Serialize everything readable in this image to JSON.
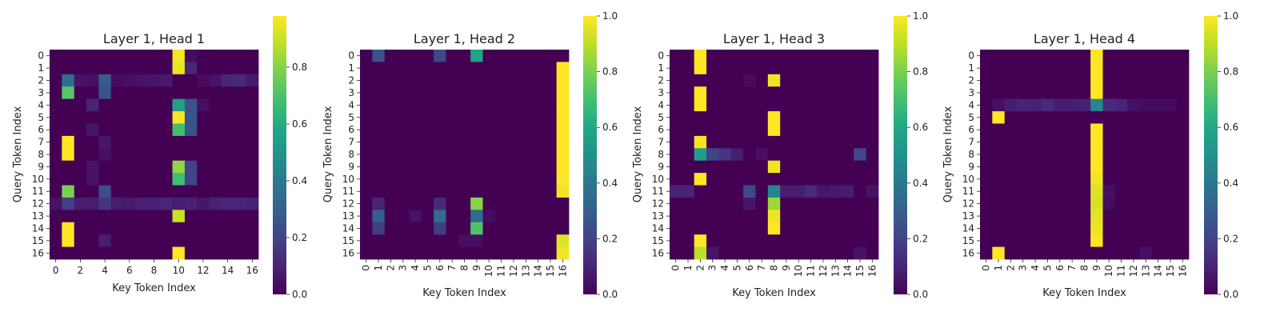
{
  "chart_data": [
    {
      "type": "heatmap",
      "title": "Layer 1, Head 1",
      "xlabel": "Key Token Index",
      "ylabel": "Query Token Index",
      "x_tick_labels": [
        "0",
        "2",
        "4",
        "6",
        "8",
        "10",
        "12",
        "14",
        "16"
      ],
      "y_tick_labels": [
        "0",
        "1",
        "2",
        "3",
        "4",
        "5",
        "6",
        "7",
        "8",
        "9",
        "10",
        "11",
        "12",
        "13",
        "14",
        "15",
        "16"
      ],
      "colorbar": {
        "ticks": [
          "0.0",
          "0.2",
          "0.4",
          "0.6",
          "0.8"
        ],
        "range": [
          0.0,
          0.98
        ]
      },
      "background_value": 0.0,
      "cells": [
        [
          0,
          10,
          0.97
        ],
        [
          0,
          11,
          0.03
        ],
        [
          1,
          10,
          0.95
        ],
        [
          1,
          11,
          0.1
        ],
        [
          2,
          1,
          0.35
        ],
        [
          2,
          2,
          0.05
        ],
        [
          2,
          3,
          0.04
        ],
        [
          2,
          4,
          0.28
        ],
        [
          2,
          5,
          0.03
        ],
        [
          2,
          6,
          0.04
        ],
        [
          2,
          7,
          0.05
        ],
        [
          2,
          8,
          0.06
        ],
        [
          2,
          9,
          0.07
        ],
        [
          2,
          12,
          0.03
        ],
        [
          2,
          13,
          0.05
        ],
        [
          2,
          14,
          0.1
        ],
        [
          2,
          15,
          0.12
        ],
        [
          2,
          16,
          0.07
        ],
        [
          3,
          1,
          0.72
        ],
        [
          3,
          4,
          0.25
        ],
        [
          4,
          3,
          0.1
        ],
        [
          4,
          10,
          0.55
        ],
        [
          4,
          11,
          0.25
        ],
        [
          4,
          12,
          0.04
        ],
        [
          5,
          10,
          0.97
        ],
        [
          5,
          11,
          0.25
        ],
        [
          6,
          3,
          0.06
        ],
        [
          6,
          10,
          0.68
        ],
        [
          6,
          11,
          0.25
        ],
        [
          7,
          1,
          0.98
        ],
        [
          7,
          4,
          0.06
        ],
        [
          8,
          1,
          0.98
        ],
        [
          8,
          4,
          0.04
        ],
        [
          9,
          3,
          0.05
        ],
        [
          9,
          10,
          0.82
        ],
        [
          9,
          11,
          0.2
        ],
        [
          10,
          3,
          0.05
        ],
        [
          10,
          10,
          0.68
        ],
        [
          10,
          11,
          0.2
        ],
        [
          11,
          1,
          0.78
        ],
        [
          11,
          4,
          0.22
        ],
        [
          12,
          0,
          0.05
        ],
        [
          12,
          1,
          0.18
        ],
        [
          12,
          2,
          0.08
        ],
        [
          12,
          3,
          0.08
        ],
        [
          12,
          4,
          0.15
        ],
        [
          12,
          5,
          0.08
        ],
        [
          12,
          6,
          0.07
        ],
        [
          12,
          7,
          0.09
        ],
        [
          12,
          8,
          0.09
        ],
        [
          12,
          9,
          0.1
        ],
        [
          12,
          10,
          0.08
        ],
        [
          12,
          11,
          0.09
        ],
        [
          12,
          12,
          0.06
        ],
        [
          12,
          13,
          0.09
        ],
        [
          12,
          14,
          0.1
        ],
        [
          12,
          15,
          0.1
        ],
        [
          12,
          16,
          0.09
        ],
        [
          13,
          10,
          0.9
        ],
        [
          14,
          1,
          0.98
        ],
        [
          15,
          1,
          0.98
        ],
        [
          15,
          4,
          0.08
        ],
        [
          16,
          10,
          0.98
        ]
      ]
    },
    {
      "type": "heatmap",
      "title": "Layer 1, Head 2",
      "xlabel": "Key Token Index",
      "ylabel": "Query Token Index",
      "x_tick_labels": [
        "0",
        "1",
        "2",
        "3",
        "4",
        "5",
        "6",
        "7",
        "8",
        "9",
        "10",
        "11",
        "12",
        "13",
        "14",
        "15",
        "16"
      ],
      "y_tick_labels": [
        "0",
        "1",
        "2",
        "3",
        "4",
        "5",
        "6",
        "7",
        "8",
        "9",
        "10",
        "11",
        "12",
        "13",
        "14",
        "15",
        "16"
      ],
      "colorbar": {
        "ticks": [
          "0.0",
          "0.2",
          "0.4",
          "0.6",
          "0.8",
          "1.0"
        ],
        "range": [
          0.0,
          1.0
        ]
      },
      "background_value": 0.0,
      "cells": [
        [
          0,
          1,
          0.25
        ],
        [
          0,
          6,
          0.22
        ],
        [
          0,
          9,
          0.58
        ],
        [
          1,
          16,
          1.0
        ],
        [
          2,
          16,
          1.0
        ],
        [
          3,
          16,
          1.0
        ],
        [
          4,
          16,
          1.0
        ],
        [
          5,
          16,
          1.0
        ],
        [
          6,
          16,
          1.0
        ],
        [
          7,
          16,
          1.0
        ],
        [
          8,
          16,
          1.0
        ],
        [
          9,
          16,
          1.0
        ],
        [
          10,
          16,
          1.0
        ],
        [
          11,
          16,
          0.98
        ],
        [
          12,
          1,
          0.1
        ],
        [
          12,
          6,
          0.12
        ],
        [
          12,
          9,
          0.82
        ],
        [
          13,
          1,
          0.3
        ],
        [
          13,
          4,
          0.05
        ],
        [
          13,
          6,
          0.35
        ],
        [
          13,
          9,
          0.35
        ],
        [
          13,
          10,
          0.03
        ],
        [
          14,
          1,
          0.18
        ],
        [
          14,
          6,
          0.18
        ],
        [
          14,
          9,
          0.72
        ],
        [
          15,
          8,
          0.04
        ],
        [
          15,
          9,
          0.04
        ],
        [
          15,
          16,
          0.95
        ],
        [
          16,
          16,
          0.98
        ]
      ]
    },
    {
      "type": "heatmap",
      "title": "Layer 1, Head 3",
      "xlabel": "Key Token Index",
      "ylabel": "Query Token Index",
      "x_tick_labels": [
        "0",
        "1",
        "2",
        "3",
        "4",
        "5",
        "6",
        "7",
        "8",
        "9",
        "10",
        "11",
        "12",
        "13",
        "14",
        "15",
        "16"
      ],
      "y_tick_labels": [
        "0",
        "1",
        "2",
        "3",
        "4",
        "5",
        "6",
        "7",
        "8",
        "9",
        "10",
        "11",
        "12",
        "13",
        "14",
        "15",
        "16"
      ],
      "colorbar": {
        "ticks": [
          "0.0",
          "0.2",
          "0.4",
          "0.6",
          "0.8",
          "1.0"
        ],
        "range": [
          0.0,
          1.0
        ]
      },
      "background_value": 0.0,
      "cells": [
        [
          0,
          2,
          1.0
        ],
        [
          1,
          2,
          1.0
        ],
        [
          2,
          6,
          0.03
        ],
        [
          2,
          8,
          0.98
        ],
        [
          3,
          2,
          1.0
        ],
        [
          4,
          2,
          1.0
        ],
        [
          5,
          8,
          1.0
        ],
        [
          6,
          8,
          1.0
        ],
        [
          7,
          2,
          0.98
        ],
        [
          8,
          2,
          0.55
        ],
        [
          8,
          3,
          0.2
        ],
        [
          8,
          4,
          0.15
        ],
        [
          8,
          5,
          0.08
        ],
        [
          8,
          7,
          0.04
        ],
        [
          8,
          15,
          0.22
        ],
        [
          9,
          8,
          0.98
        ],
        [
          10,
          2,
          1.0
        ],
        [
          11,
          0,
          0.1
        ],
        [
          11,
          1,
          0.1
        ],
        [
          11,
          6,
          0.22
        ],
        [
          11,
          8,
          0.45
        ],
        [
          11,
          9,
          0.08
        ],
        [
          11,
          10,
          0.08
        ],
        [
          11,
          11,
          0.12
        ],
        [
          11,
          12,
          0.06
        ],
        [
          11,
          13,
          0.07
        ],
        [
          11,
          14,
          0.08
        ],
        [
          11,
          16,
          0.05
        ],
        [
          12,
          6,
          0.06
        ],
        [
          12,
          8,
          0.85
        ],
        [
          13,
          8,
          0.98
        ],
        [
          14,
          8,
          1.0
        ],
        [
          15,
          2,
          1.0
        ],
        [
          16,
          2,
          0.9
        ],
        [
          16,
          3,
          0.05
        ],
        [
          16,
          15,
          0.05
        ]
      ]
    },
    {
      "type": "heatmap",
      "title": "Layer 1, Head 4",
      "xlabel": "Key Token Index",
      "ylabel": "Query Token Index",
      "x_tick_labels": [
        "0",
        "1",
        "2",
        "3",
        "4",
        "5",
        "6",
        "7",
        "8",
        "9",
        "10",
        "11",
        "12",
        "13",
        "14",
        "15",
        "16"
      ],
      "y_tick_labels": [
        "0",
        "1",
        "2",
        "3",
        "4",
        "5",
        "6",
        "7",
        "8",
        "9",
        "10",
        "11",
        "12",
        "13",
        "14",
        "15",
        "16"
      ],
      "colorbar": {
        "ticks": [
          "0.0",
          "0.2",
          "0.4",
          "0.6",
          "0.8",
          "1.0"
        ],
        "range": [
          0.0,
          1.0
        ]
      },
      "background_value": 0.0,
      "cells": [
        [
          0,
          9,
          1.0
        ],
        [
          1,
          9,
          1.0
        ],
        [
          2,
          9,
          1.0
        ],
        [
          3,
          9,
          1.0
        ],
        [
          4,
          1,
          0.04
        ],
        [
          4,
          2,
          0.08
        ],
        [
          4,
          3,
          0.1
        ],
        [
          4,
          4,
          0.09
        ],
        [
          4,
          5,
          0.12
        ],
        [
          4,
          6,
          0.08
        ],
        [
          4,
          7,
          0.08
        ],
        [
          4,
          8,
          0.09
        ],
        [
          4,
          9,
          0.45
        ],
        [
          4,
          10,
          0.12
        ],
        [
          4,
          11,
          0.1
        ],
        [
          4,
          12,
          0.04
        ],
        [
          4,
          13,
          0.03
        ],
        [
          4,
          14,
          0.03
        ],
        [
          4,
          15,
          0.03
        ],
        [
          5,
          1,
          1.0
        ],
        [
          6,
          9,
          1.0
        ],
        [
          7,
          9,
          1.0
        ],
        [
          8,
          9,
          1.0
        ],
        [
          9,
          9,
          1.0
        ],
        [
          10,
          9,
          0.98
        ],
        [
          11,
          9,
          0.95
        ],
        [
          11,
          10,
          0.04
        ],
        [
          12,
          9,
          0.94
        ],
        [
          12,
          10,
          0.03
        ],
        [
          13,
          9,
          0.96
        ],
        [
          14,
          9,
          0.97
        ],
        [
          15,
          9,
          1.0
        ],
        [
          16,
          1,
          1.0
        ],
        [
          16,
          13,
          0.04
        ]
      ]
    }
  ]
}
